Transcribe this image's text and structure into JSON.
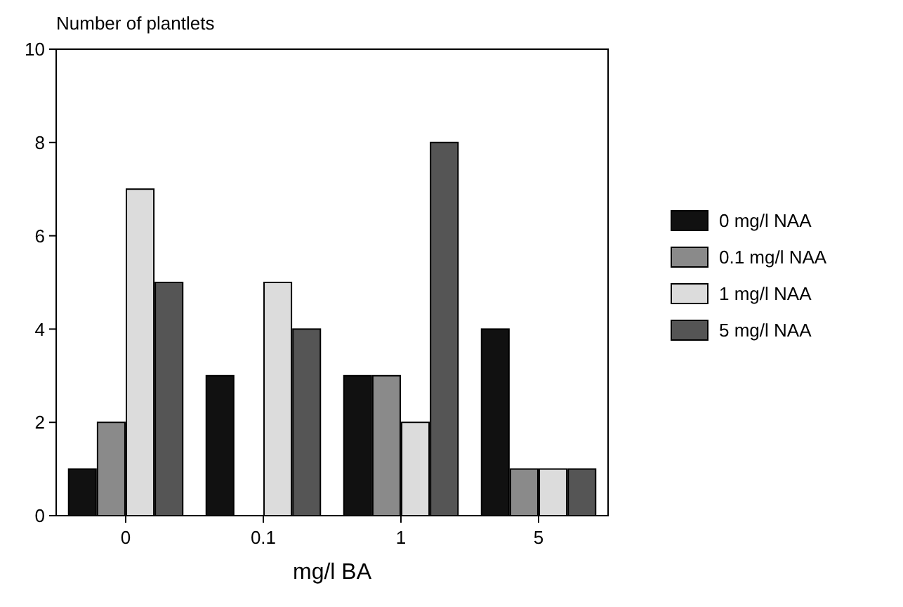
{
  "chart_data": {
    "type": "bar",
    "ylabel": "Number of plantlets",
    "xlabel": "mg/l BA",
    "categories": [
      "0",
      "0.1",
      "1",
      "5"
    ],
    "series": [
      {
        "name": "0 mg/l NAA",
        "color": "#111111",
        "values": [
          1,
          3,
          3,
          4
        ]
      },
      {
        "name": "0.1 mg/l NAA",
        "color": "#8a8a8a",
        "values": [
          2,
          0,
          3,
          1
        ]
      },
      {
        "name": "1 mg/l NAA",
        "color": "#dcdcdc",
        "values": [
          7,
          5,
          2,
          1
        ]
      },
      {
        "name": "5 mg/l NAA",
        "color": "#555555",
        "values": [
          5,
          4,
          8,
          1
        ]
      }
    ],
    "ylim": [
      0,
      10
    ],
    "yticks": [
      0,
      2,
      4,
      6,
      8,
      10
    ],
    "grid": false,
    "legend": "right"
  }
}
